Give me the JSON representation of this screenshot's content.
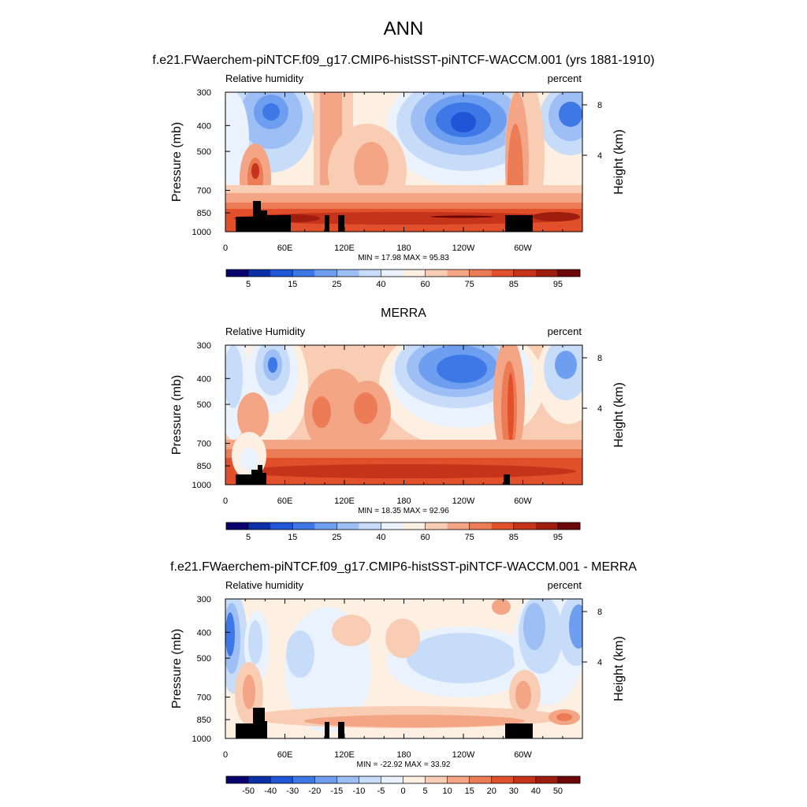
{
  "page": {
    "title": "ANN"
  },
  "panels": [
    {
      "title": "f.e21.FWaerchem-piNTCF.f09_g17.CMIP6-histSST-piNTCF-WACCM.001 (yrs 1881-1910)",
      "left_label": "Relative humidity",
      "right_label": "percent",
      "ylabel": "Pressure (mb)",
      "y2label": "Height (km)",
      "stats": "MIN = 17.98  MAX = 95.83",
      "colorbar_labels": [
        "5",
        "15",
        "25",
        "40",
        "60",
        "75",
        "85",
        "95"
      ]
    },
    {
      "title": "MERRA",
      "left_label": "Relative Humidity",
      "right_label": "percent",
      "ylabel": "Pressure (mb)",
      "y2label": "Height (km)",
      "stats": "MIN = 18.35  MAX = 92.96",
      "colorbar_labels": [
        "5",
        "15",
        "25",
        "40",
        "60",
        "75",
        "85",
        "95"
      ]
    },
    {
      "title": "f.e21.FWaerchem-piNTCF.f09_g17.CMIP6-histSST-piNTCF-WACCM.001 - MERRA",
      "left_label": "Relative humidity",
      "right_label": "percent",
      "ylabel": "Pressure (mb)",
      "y2label": "Height (km)",
      "stats": "MIN = -22.92  MAX = 33.92",
      "colorbar_labels": [
        "-50",
        "-40",
        "-30",
        "-20",
        "-15",
        "-10",
        "-5",
        "0",
        "5",
        "10",
        "15",
        "20",
        "30",
        "40",
        "50"
      ]
    }
  ],
  "axes": {
    "x_ticks": [
      "0",
      "60E",
      "120E",
      "180",
      "120W",
      "60W"
    ],
    "y_ticks": [
      "300",
      "400",
      "500",
      "700",
      "850",
      "1000"
    ],
    "y2_ticks": [
      "8",
      "4"
    ]
  },
  "colors": {
    "abs_scale": [
      "#08036f",
      "#0a2fa6",
      "#1f55d6",
      "#3d78e6",
      "#6d9ef0",
      "#9ebff5",
      "#c6dcf8",
      "#e9f2fd",
      "#fdf0e2",
      "#f8cdb3",
      "#f3a585",
      "#ec7c55",
      "#e24f2b",
      "#c6331b",
      "#9e1d0f",
      "#6e0707"
    ],
    "diff_scale": [
      "#08036f",
      "#0a2fa6",
      "#1f55d6",
      "#3d78e6",
      "#6d9ef0",
      "#9ebff5",
      "#c6dcf8",
      "#e9f2fd",
      "#fdf0e2",
      "#f8cdb3",
      "#f3a585",
      "#ec7c55",
      "#e24f2b",
      "#c6331b",
      "#9e1d0f",
      "#6e0707"
    ],
    "topography": "#000000"
  },
  "chart_data": [
    {
      "type": "heatmap",
      "title": "f.e21.FWaerchem-piNTCF.f09_g17.CMIP6-histSST-piNTCF-WACCM.001 (yrs 1881-1910)",
      "subtitle_left": "Relative humidity",
      "subtitle_right": "percent",
      "xlabel": "",
      "ylabel": "Pressure (mb)",
      "y2label": "Height (km)",
      "x_ticks": [
        "0",
        "60E",
        "120E",
        "180",
        "120W",
        "60W"
      ],
      "y_ticks": [
        300,
        400,
        500,
        700,
        850,
        1000
      ],
      "y_scale": "log",
      "ylim": [
        1000,
        300
      ],
      "levels": [
        5,
        10,
        15,
        20,
        25,
        30,
        40,
        50,
        60,
        65,
        70,
        75,
        80,
        85,
        90,
        95
      ],
      "min": 17.98,
      "max": 95.83,
      "units": "percent"
    },
    {
      "type": "heatmap",
      "title": "MERRA",
      "subtitle_left": "Relative Humidity",
      "subtitle_right": "percent",
      "xlabel": "",
      "ylabel": "Pressure (mb)",
      "y2label": "Height (km)",
      "x_ticks": [
        "0",
        "60E",
        "120E",
        "180",
        "120W",
        "60W"
      ],
      "y_ticks": [
        300,
        400,
        500,
        700,
        850,
        1000
      ],
      "y_scale": "log",
      "ylim": [
        1000,
        300
      ],
      "levels": [
        5,
        10,
        15,
        20,
        25,
        30,
        40,
        50,
        60,
        65,
        70,
        75,
        80,
        85,
        90,
        95
      ],
      "min": 18.35,
      "max": 92.96,
      "units": "percent"
    },
    {
      "type": "heatmap",
      "title": "f.e21.FWaerchem-piNTCF.f09_g17.CMIP6-histSST-piNTCF-WACCM.001 - MERRA",
      "subtitle_left": "Relative humidity",
      "subtitle_right": "percent",
      "xlabel": "",
      "ylabel": "Pressure (mb)",
      "y2label": "Height (km)",
      "x_ticks": [
        "0",
        "60E",
        "120E",
        "180",
        "120W",
        "60W"
      ],
      "y_ticks": [
        300,
        400,
        500,
        700,
        850,
        1000
      ],
      "y_scale": "log",
      "ylim": [
        1000,
        300
      ],
      "levels": [
        -50,
        -40,
        -30,
        -20,
        -15,
        -10,
        -5,
        0,
        5,
        10,
        15,
        20,
        30,
        40,
        50
      ],
      "min": -22.92,
      "max": 33.92,
      "units": "percent"
    }
  ]
}
